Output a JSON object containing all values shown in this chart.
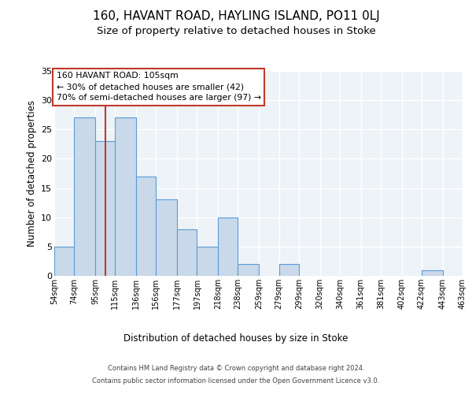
{
  "title": "160, HAVANT ROAD, HAYLING ISLAND, PO11 0LJ",
  "subtitle": "Size of property relative to detached houses in Stoke",
  "xlabel": "Distribution of detached houses by size in Stoke",
  "ylabel": "Number of detached properties",
  "bin_edges": [
    54,
    74,
    95,
    115,
    136,
    156,
    177,
    197,
    218,
    238,
    259,
    279,
    299,
    320,
    340,
    361,
    381,
    402,
    422,
    443,
    463
  ],
  "bar_heights": [
    5,
    27,
    23,
    27,
    17,
    13,
    8,
    5,
    10,
    2,
    0,
    2,
    0,
    0,
    0,
    0,
    0,
    0,
    1,
    0
  ],
  "bar_color": "#c9d9ea",
  "bar_edge_color": "#5b9bd5",
  "vline_x": 105,
  "vline_color": "#c0392b",
  "ylim": [
    0,
    35
  ],
  "yticks": [
    0,
    5,
    10,
    15,
    20,
    25,
    30,
    35
  ],
  "annotation_text": "160 HAVANT ROAD: 105sqm\n← 30% of detached houses are smaller (42)\n70% of semi-detached houses are larger (97) →",
  "annotation_box_color": "#c0392b",
  "footer_line1": "Contains HM Land Registry data © Crown copyright and database right 2024.",
  "footer_line2": "Contains public sector information licensed under the Open Government Licence v3.0.",
  "bg_color": "#eef3f8",
  "grid_color": "#ffffff",
  "title_fontsize": 11,
  "subtitle_fontsize": 9.5,
  "tick_labels": [
    "54sqm",
    "74sqm",
    "95sqm",
    "115sqm",
    "136sqm",
    "156sqm",
    "177sqm",
    "197sqm",
    "218sqm",
    "238sqm",
    "259sqm",
    "279sqm",
    "299sqm",
    "320sqm",
    "340sqm",
    "361sqm",
    "381sqm",
    "402sqm",
    "422sqm",
    "443sqm",
    "463sqm"
  ]
}
